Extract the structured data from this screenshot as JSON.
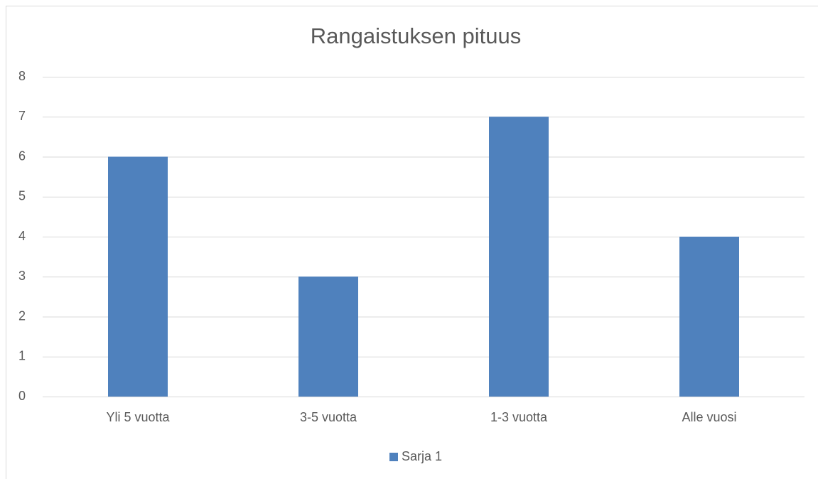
{
  "chart_data": {
    "type": "bar",
    "title": "Rangaistuksen pituus",
    "categories": [
      "Yli 5 vuotta",
      "3-5 vuotta",
      "1-3 vuotta",
      "Alle vuosi"
    ],
    "series": [
      {
        "name": "Sarja 1",
        "color": "#4f81bd",
        "values": [
          6,
          3,
          7,
          4
        ]
      }
    ],
    "ylim": [
      0,
      8
    ],
    "yticks": [
      0,
      1,
      2,
      3,
      4,
      5,
      6,
      7,
      8
    ],
    "grid": true,
    "legend": "bottom"
  }
}
